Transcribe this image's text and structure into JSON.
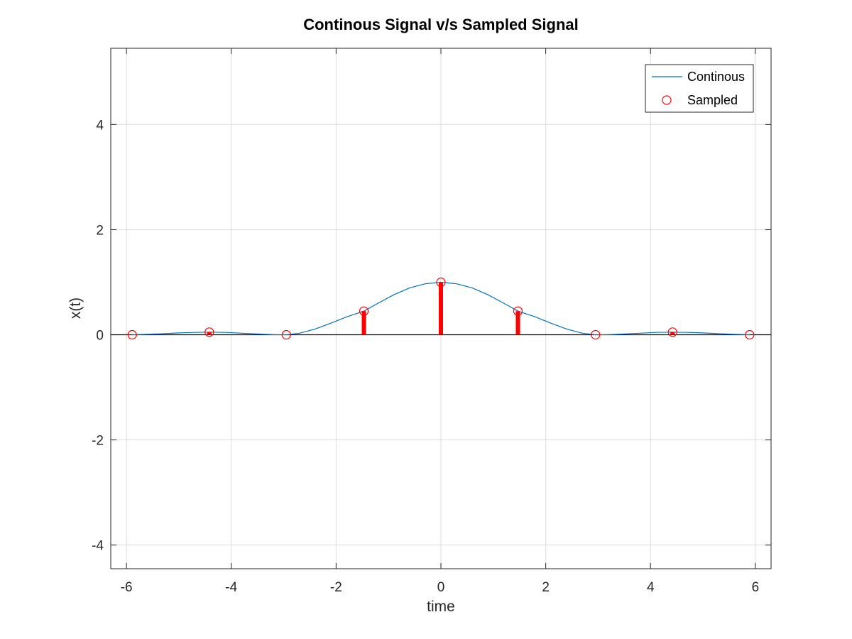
{
  "chart_data": {
    "type": "line",
    "title": "Continous Signal v/s Sampled Signal",
    "xlabel": "time",
    "ylabel": "x(t)",
    "xlim": [
      -6.3,
      6.3
    ],
    "ylim": [
      -4.45,
      5.45
    ],
    "xticks": [
      -6,
      -4,
      -2,
      0,
      2,
      4,
      6
    ],
    "xtick_labels": [
      "-6",
      "-4",
      "-2",
      "0",
      "2",
      "4",
      "6"
    ],
    "yticks": [
      -4,
      -2,
      0,
      2,
      4
    ],
    "ytick_labels": [
      "-4",
      "-2",
      "0",
      "2",
      "4"
    ],
    "grid": true,
    "legend_position": "top-right",
    "series": [
      {
        "name": "Continous",
        "style": "line",
        "color": "#0072bd",
        "x": [
          -5.9,
          -5.6,
          -5.3,
          -5.0,
          -4.7,
          -4.42,
          -4.1,
          -3.8,
          -3.5,
          -3.2,
          -2.95,
          -2.7,
          -2.4,
          -2.1,
          -1.8,
          -1.47,
          -1.2,
          -0.9,
          -0.6,
          -0.3,
          0.0,
          0.3,
          0.6,
          0.9,
          1.2,
          1.47,
          1.8,
          2.1,
          2.4,
          2.7,
          2.95,
          3.2,
          3.5,
          3.8,
          4.1,
          4.42,
          4.7,
          5.0,
          5.3,
          5.6,
          5.9
        ],
        "y": [
          0.0,
          0.01,
          0.02,
          0.035,
          0.045,
          0.05,
          0.045,
          0.03,
          0.015,
          0.003,
          0.0,
          0.03,
          0.11,
          0.22,
          0.34,
          0.45,
          0.6,
          0.76,
          0.89,
          0.97,
          1.0,
          0.97,
          0.89,
          0.76,
          0.6,
          0.45,
          0.34,
          0.22,
          0.11,
          0.03,
          0.0,
          0.003,
          0.015,
          0.03,
          0.045,
          0.05,
          0.045,
          0.035,
          0.02,
          0.01,
          0.0
        ]
      },
      {
        "name": "Sampled",
        "style": "stem-circle",
        "color": "#ff0000",
        "x": [
          -5.89,
          -4.42,
          -2.95,
          -1.47,
          0.0,
          1.47,
          2.95,
          4.42,
          5.89
        ],
        "y": [
          0.0,
          0.05,
          0.0,
          0.45,
          1.0,
          0.45,
          0.0,
          0.05,
          0.0
        ]
      }
    ]
  }
}
